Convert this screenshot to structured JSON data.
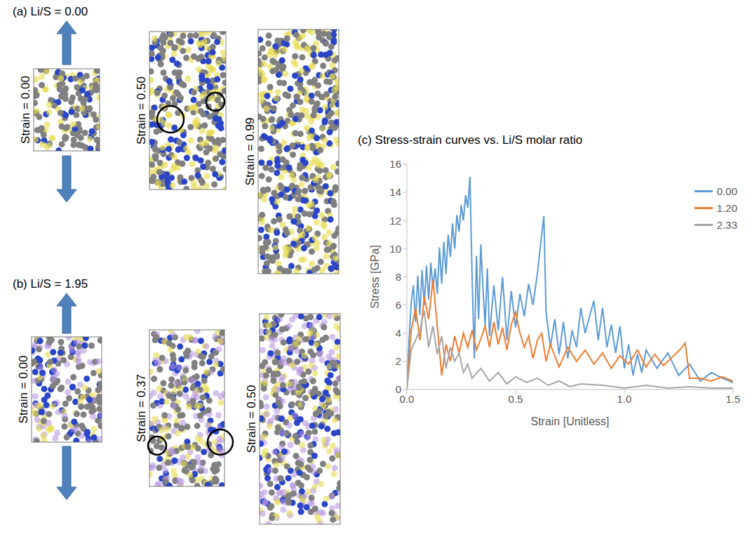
{
  "panels": [
    {
      "label": "(a) Li/S = 0.00",
      "snapshots": [
        "Strain = 0.00",
        "Strain = 0.50",
        "Strain = 0.99"
      ]
    },
    {
      "label": "(b) Li/S = 1.95",
      "snapshots": [
        "Strain = 0.00",
        "Strain = 0.37",
        "Strain = 0.50"
      ]
    }
  ],
  "chart_data": {
    "type": "line",
    "title": "(c) Stress-strain curves vs. Li/S molar ratio",
    "x_label": "Strain [Unitless]",
    "y_label": "Stress [GPa]",
    "xlim": [
      0,
      1.5
    ],
    "ylim": [
      0,
      16
    ],
    "xticks": [
      {
        "value": 0,
        "label": "0.0"
      },
      {
        "value": 0.5,
        "label": "0.5"
      },
      {
        "value": 1,
        "label": "1.0"
      },
      {
        "value": 1.5,
        "label": "1.5"
      }
    ],
    "yticks": [
      0,
      2,
      4,
      6,
      8,
      10,
      12,
      14,
      16
    ],
    "grid": false,
    "legend": "upper right",
    "series": [
      {
        "name": "0.00",
        "color": "#5b9bd5",
        "x": [
          0,
          0.01,
          0.02,
          0.03,
          0.04,
          0.05,
          0.06,
          0.07,
          0.08,
          0.09,
          0.1,
          0.11,
          0.12,
          0.13,
          0.14,
          0.15,
          0.16,
          0.17,
          0.18,
          0.19,
          0.2,
          0.21,
          0.22,
          0.23,
          0.24,
          0.25,
          0.26,
          0.27,
          0.28,
          0.29,
          0.3,
          0.31,
          0.32,
          0.33,
          0.34,
          0.35,
          0.36,
          0.37,
          0.38,
          0.4,
          0.42,
          0.44,
          0.46,
          0.48,
          0.5,
          0.52,
          0.54,
          0.56,
          0.58,
          0.6,
          0.62,
          0.63,
          0.64,
          0.66,
          0.68,
          0.7,
          0.72,
          0.74,
          0.76,
          0.78,
          0.8,
          0.82,
          0.84,
          0.86,
          0.88,
          0.9,
          0.92,
          0.94,
          0.96,
          0.98,
          1.0,
          1.02,
          1.04,
          1.06,
          1.08,
          1.1,
          1.15,
          1.2,
          1.25,
          1.3,
          1.35,
          1.4,
          1.45,
          1.5
        ],
        "values": [
          0,
          3.5,
          6.2,
          7.4,
          4.8,
          8.1,
          5.3,
          8.5,
          6.0,
          8.8,
          6.4,
          9.0,
          7.2,
          8.6,
          6.8,
          10.1,
          7.5,
          10.5,
          8.2,
          11.0,
          9.4,
          11.8,
          10.0,
          12.4,
          11.2,
          13.1,
          12.0,
          13.8,
          12.9,
          15.1,
          8.0,
          2.2,
          9.5,
          5.0,
          10.3,
          7.2,
          4.5,
          8.6,
          3.8,
          7.4,
          4.2,
          8.0,
          3.5,
          7.0,
          4.4,
          6.8,
          5.2,
          7.5,
          6.0,
          8.2,
          11.0,
          12.3,
          5.5,
          3.0,
          5.0,
          2.5,
          4.8,
          2.2,
          4.2,
          3.0,
          5.8,
          4.0,
          5.2,
          6.3,
          3.5,
          5.8,
          3.0,
          4.6,
          2.6,
          4.5,
          1.5,
          3.2,
          1.0,
          2.5,
          1.2,
          2.8,
          1.5,
          2.6,
          1.0,
          1.8,
          0.6,
          1.2,
          0.8,
          0.5
        ]
      },
      {
        "name": "1.20",
        "color": "#ed7d31",
        "x": [
          0,
          0.02,
          0.04,
          0.06,
          0.08,
          0.1,
          0.12,
          0.14,
          0.16,
          0.18,
          0.2,
          0.22,
          0.24,
          0.26,
          0.28,
          0.3,
          0.32,
          0.34,
          0.36,
          0.38,
          0.4,
          0.42,
          0.44,
          0.46,
          0.48,
          0.5,
          0.52,
          0.54,
          0.56,
          0.58,
          0.6,
          0.62,
          0.64,
          0.66,
          0.7,
          0.74,
          0.78,
          0.82,
          0.86,
          0.9,
          0.94,
          0.98,
          1.02,
          1.06,
          1.1,
          1.14,
          1.18,
          1.22,
          1.26,
          1.28,
          1.3,
          1.35,
          1.4,
          1.45,
          1.5
        ],
        "values": [
          0,
          4.2,
          5.8,
          3.5,
          6.6,
          5.0,
          7.8,
          4.5,
          1.0,
          3.2,
          2.0,
          3.8,
          2.6,
          4.0,
          3.0,
          4.2,
          2.8,
          3.6,
          4.5,
          3.0,
          4.8,
          3.2,
          4.4,
          2.8,
          4.6,
          5.5,
          4.0,
          3.0,
          3.8,
          2.2,
          3.5,
          4.0,
          2.0,
          3.2,
          1.6,
          3.0,
          2.0,
          2.8,
          1.8,
          2.6,
          1.5,
          2.4,
          1.8,
          2.8,
          1.6,
          2.5,
          1.7,
          2.3,
          2.9,
          3.3,
          0.8,
          0.8,
          0.6,
          0.9,
          0.6
        ]
      },
      {
        "name": "2.33",
        "color": "#a5a5a5",
        "x": [
          0,
          0.02,
          0.04,
          0.06,
          0.08,
          0.1,
          0.12,
          0.14,
          0.16,
          0.18,
          0.2,
          0.22,
          0.24,
          0.26,
          0.28,
          0.3,
          0.34,
          0.38,
          0.42,
          0.46,
          0.5,
          0.55,
          0.6,
          0.65,
          0.7,
          0.75,
          0.8,
          0.9,
          1.0,
          1.1,
          1.2,
          1.3,
          1.4,
          1.5
        ],
        "values": [
          0,
          2.8,
          3.5,
          4.2,
          5.6,
          3.0,
          4.5,
          2.5,
          3.8,
          1.5,
          3.0,
          2.0,
          2.6,
          1.2,
          1.8,
          0.8,
          1.5,
          0.6,
          1.2,
          0.4,
          0.9,
          0.5,
          0.8,
          0.3,
          0.6,
          0.2,
          0.4,
          0.3,
          0.1,
          0.3,
          0.1,
          0.2,
          0.1,
          0.1
        ]
      }
    ]
  }
}
